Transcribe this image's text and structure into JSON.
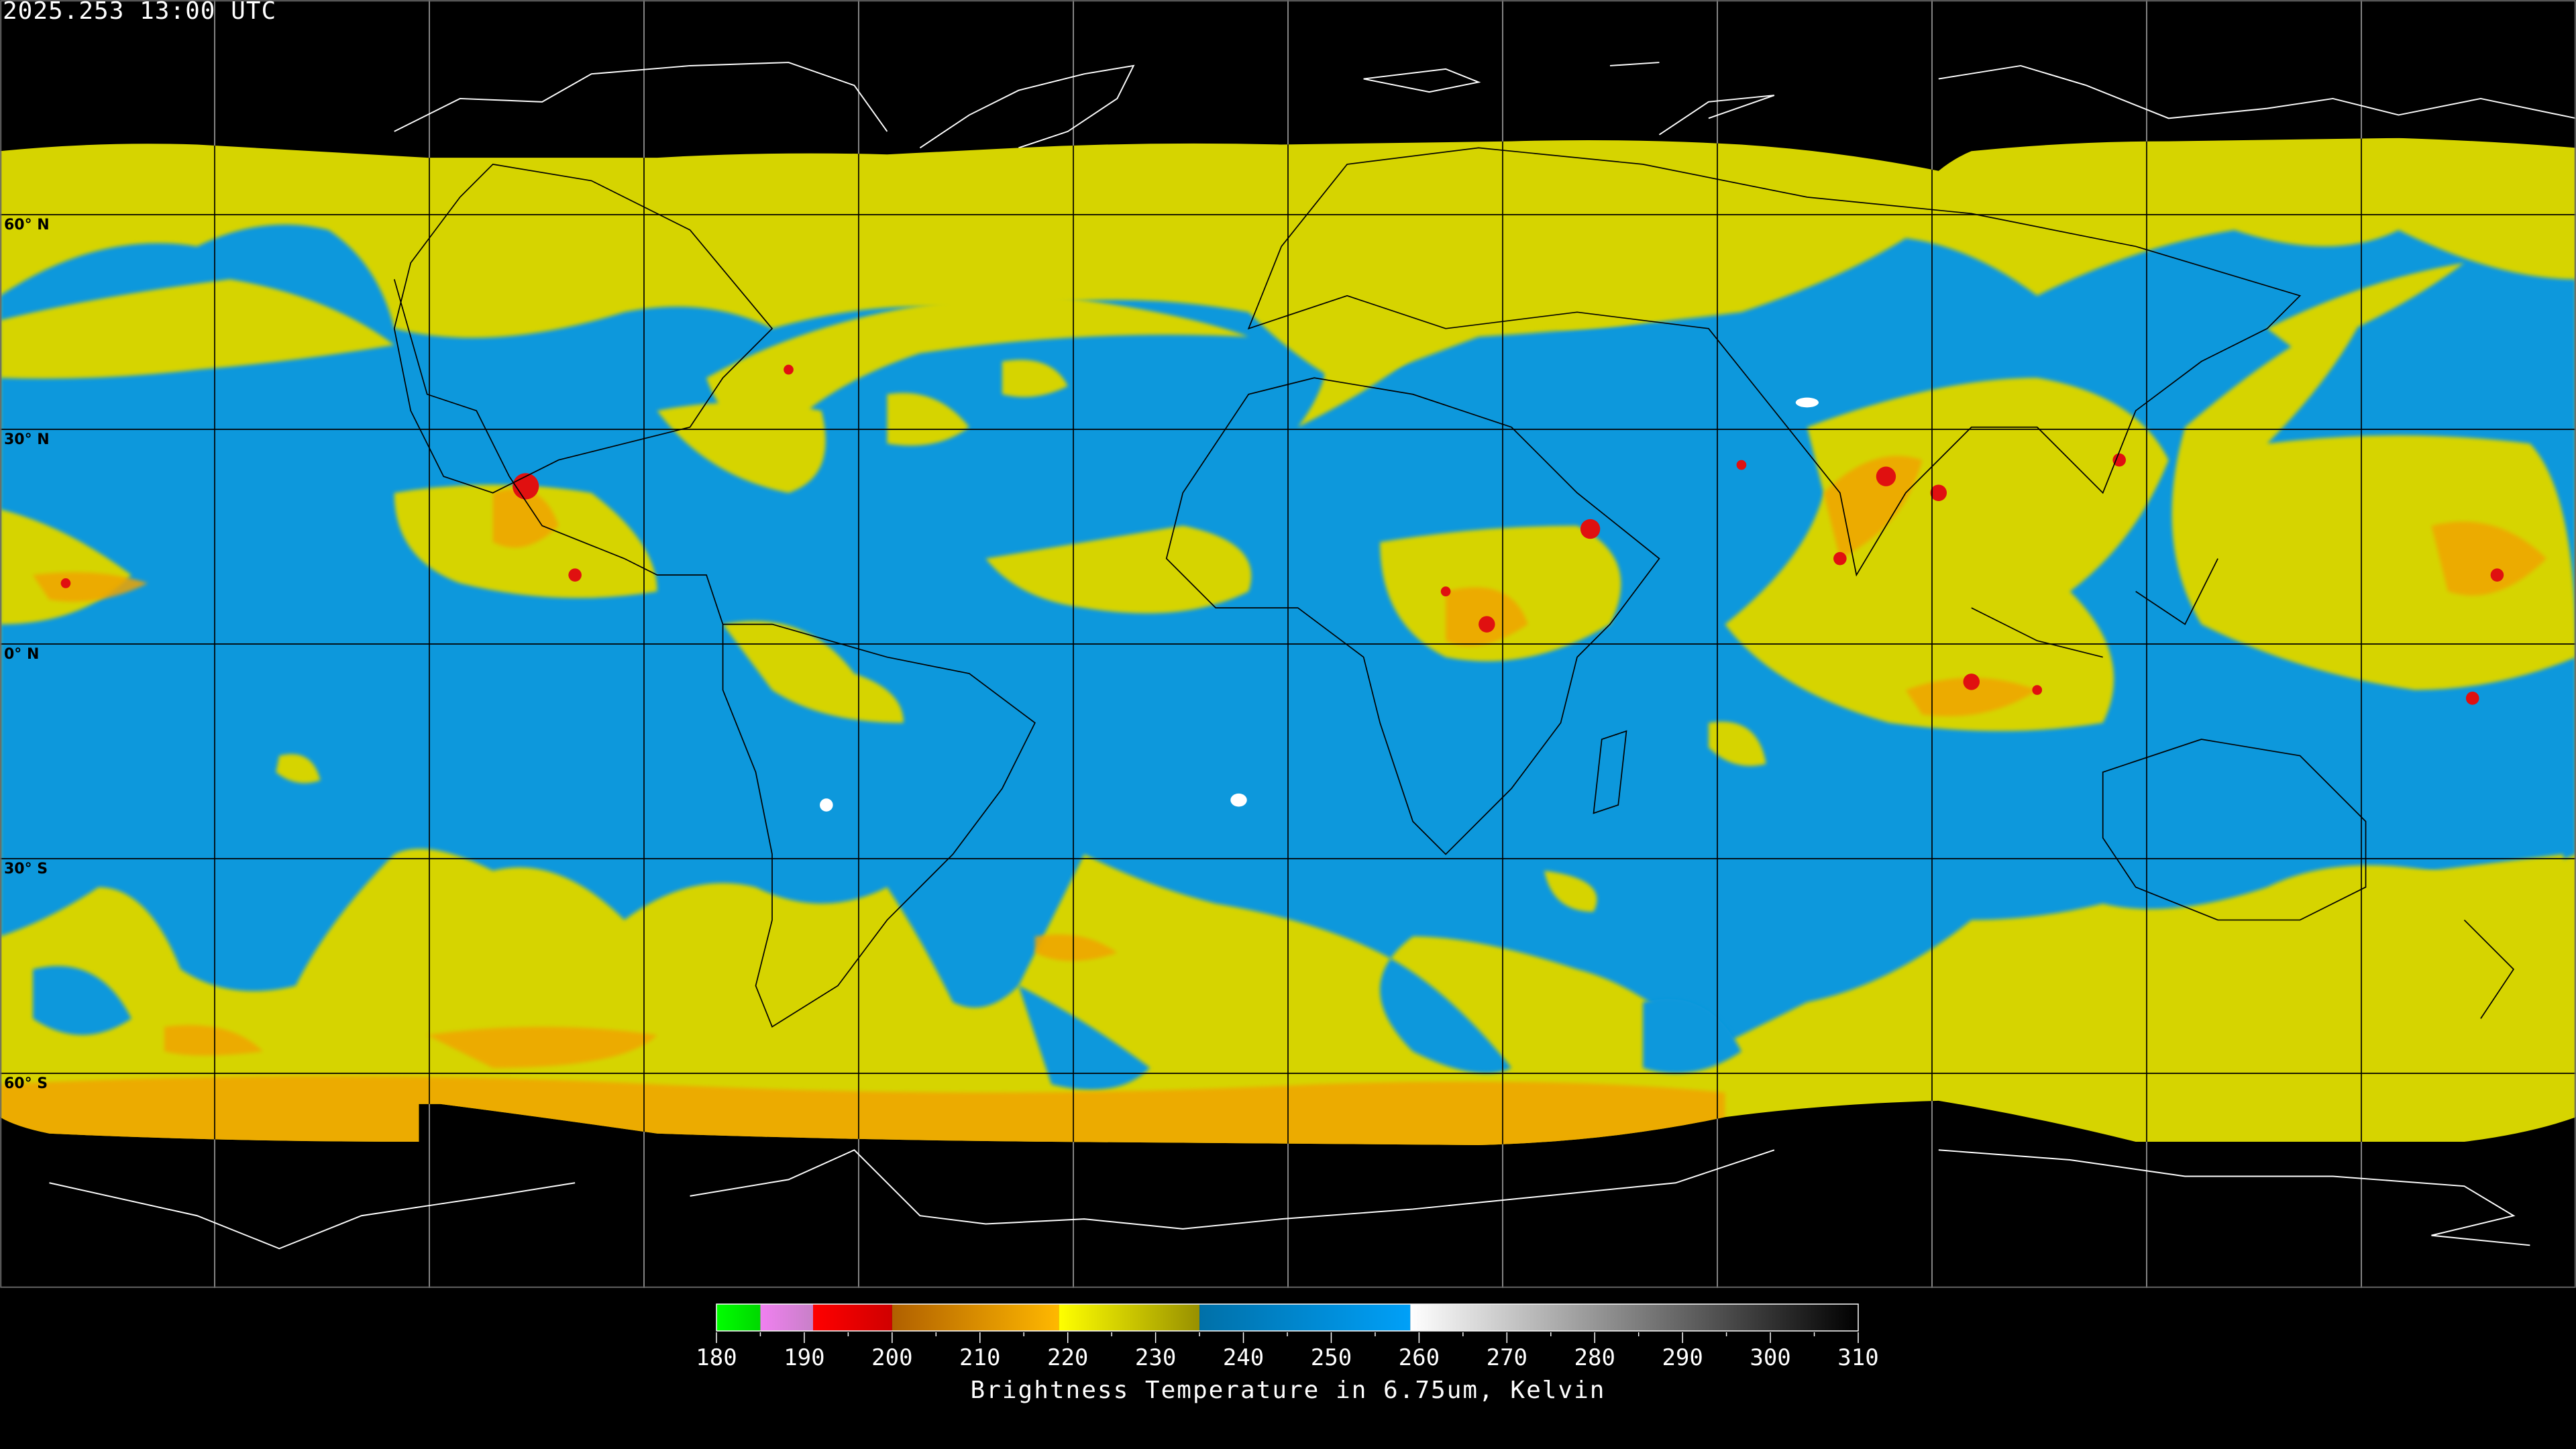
{
  "title": "2025.253 13:00 UTC",
  "latitude_labels": [
    "60° N",
    "30° N",
    "0° N",
    "30° S",
    "60° S"
  ],
  "colorbar": {
    "title": "Brightness Temperature in 6.75um, Kelvin",
    "range": [
      180,
      310
    ],
    "tick_labels": [
      "180",
      "190",
      "200",
      "210",
      "220",
      "230",
      "240",
      "250",
      "260",
      "270",
      "280",
      "290",
      "300",
      "310"
    ],
    "segments": [
      {
        "from": 180,
        "to": 185,
        "colors": [
          "#00ff00",
          "#00d800"
        ]
      },
      {
        "from": 185,
        "to": 191,
        "colors": [
          "#f080f0",
          "#c880c8"
        ]
      },
      {
        "from": 191,
        "to": 200,
        "colors": [
          "#ff0000",
          "#d00000"
        ]
      },
      {
        "from": 200,
        "to": 219,
        "colors": [
          "#b06000",
          "#ffb800"
        ]
      },
      {
        "from": 219,
        "to": 235,
        "colors": [
          "#ffff00",
          "#989000"
        ]
      },
      {
        "from": 235,
        "to": 259,
        "colors": [
          "#0070a8",
          "#00a0f8"
        ]
      },
      {
        "from": 259,
        "to": 310,
        "colors": [
          "#ffffff",
          "#000000"
        ]
      }
    ]
  },
  "colors": {
    "dry_air": "#0a98dc",
    "moist": "#d8d800",
    "cold": "#f0a000",
    "very_cold": "#e01010"
  }
}
